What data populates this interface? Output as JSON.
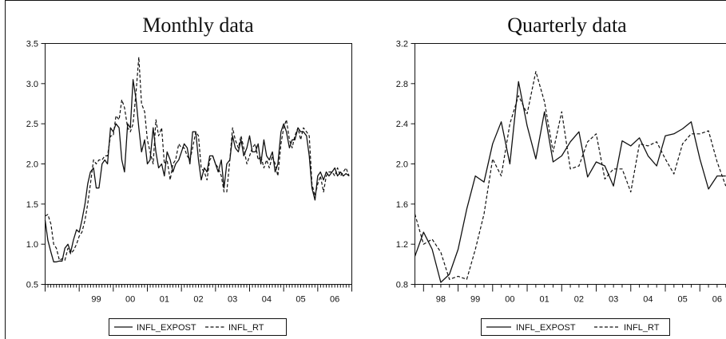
{
  "chart_data": [
    {
      "type": "line",
      "title": "Monthly data",
      "xlabel": "",
      "ylabel": "",
      "ylim": [
        0.5,
        3.5
      ],
      "yticks": [
        "0.5",
        "1.0",
        "1.5",
        "2.0",
        "2.5",
        "3.0",
        "3.5"
      ],
      "xlim": [
        1998.0,
        2007.0
      ],
      "xticks": [
        "99",
        "00",
        "01",
        "02",
        "03",
        "04",
        "05",
        "06"
      ],
      "legend": [
        "INFL_EXPOST",
        "INFL_RT"
      ],
      "legend_position": "bottom",
      "grid": false,
      "series": [
        {
          "name": "INFL_EXPOST",
          "style": "solid",
          "x": [
            1998.0,
            1998.08,
            1998.17,
            1998.25,
            1998.33,
            1998.42,
            1998.5,
            1998.58,
            1998.67,
            1998.75,
            1998.83,
            1998.92,
            1999.0,
            1999.08,
            1999.17,
            1999.25,
            1999.33,
            1999.42,
            1999.5,
            1999.58,
            1999.67,
            1999.75,
            1999.83,
            1999.92,
            2000.0,
            2000.08,
            2000.17,
            2000.25,
            2000.33,
            2000.42,
            2000.5,
            2000.58,
            2000.67,
            2000.75,
            2000.83,
            2000.92,
            2001.0,
            2001.08,
            2001.17,
            2001.25,
            2001.33,
            2001.42,
            2001.5,
            2001.58,
            2001.67,
            2001.75,
            2001.83,
            2001.92,
            2002.0,
            2002.08,
            2002.17,
            2002.25,
            2002.33,
            2002.42,
            2002.5,
            2002.58,
            2002.67,
            2002.75,
            2002.83,
            2002.92,
            2003.0,
            2003.08,
            2003.17,
            2003.25,
            2003.33,
            2003.42,
            2003.5,
            2003.58,
            2003.67,
            2003.75,
            2003.83,
            2003.92,
            2004.0,
            2004.08,
            2004.17,
            2004.25,
            2004.33,
            2004.42,
            2004.5,
            2004.58,
            2004.67,
            2004.75,
            2004.83,
            2004.92,
            2005.0,
            2005.08,
            2005.17,
            2005.25,
            2005.33,
            2005.42,
            2005.5,
            2005.58,
            2005.67,
            2005.75,
            2005.83,
            2005.92,
            2006.0,
            2006.08,
            2006.17,
            2006.25,
            2006.33,
            2006.42,
            2006.5,
            2006.58,
            2006.67,
            2006.75,
            2006.83,
            2006.92
          ],
          "y": [
            1.3,
            1.05,
            0.9,
            0.78,
            0.78,
            0.79,
            0.79,
            0.95,
            1.0,
            0.9,
            1.05,
            1.18,
            1.15,
            1.3,
            1.5,
            1.75,
            1.9,
            1.95,
            1.7,
            1.7,
            2.0,
            2.05,
            2.0,
            2.45,
            2.4,
            2.5,
            2.45,
            2.05,
            1.9,
            2.5,
            2.45,
            3.05,
            2.8,
            2.45,
            2.15,
            2.3,
            2.0,
            2.05,
            2.45,
            2.15,
            1.95,
            2.0,
            1.85,
            2.15,
            2.05,
            1.9,
            2.0,
            2.05,
            2.15,
            2.25,
            2.2,
            2.0,
            2.4,
            2.4,
            2.05,
            1.8,
            1.95,
            1.9,
            2.1,
            2.1,
            2.0,
            1.9,
            2.05,
            1.7,
            2.0,
            2.05,
            2.35,
            2.2,
            2.15,
            2.3,
            2.1,
            2.2,
            2.35,
            2.15,
            2.15,
            2.25,
            2.0,
            2.3,
            2.1,
            2.05,
            2.15,
            1.9,
            2.0,
            2.4,
            2.5,
            2.4,
            2.2,
            2.3,
            2.3,
            2.45,
            2.4,
            2.4,
            2.35,
            2.1,
            1.7,
            1.55,
            1.85,
            1.9,
            1.8,
            1.9,
            1.85,
            1.9,
            1.95,
            1.85,
            1.9,
            1.85,
            1.88,
            1.85
          ]
        },
        {
          "name": "INFL_RT",
          "style": "dashed",
          "x": [
            1998.0,
            1998.08,
            1998.17,
            1998.25,
            1998.33,
            1998.42,
            1998.5,
            1998.58,
            1998.67,
            1998.75,
            1998.83,
            1998.92,
            1999.0,
            1999.08,
            1999.17,
            1999.25,
            1999.33,
            1999.42,
            1999.5,
            1999.58,
            1999.67,
            1999.75,
            1999.83,
            1999.92,
            2000.0,
            2000.08,
            2000.17,
            2000.25,
            2000.33,
            2000.42,
            2000.5,
            2000.58,
            2000.67,
            2000.75,
            2000.83,
            2000.92,
            2001.0,
            2001.08,
            2001.17,
            2001.25,
            2001.33,
            2001.42,
            2001.5,
            2001.58,
            2001.67,
            2001.75,
            2001.83,
            2001.92,
            2002.0,
            2002.08,
            2002.17,
            2002.25,
            2002.33,
            2002.42,
            2002.5,
            2002.58,
            2002.67,
            2002.75,
            2002.83,
            2002.92,
            2003.0,
            2003.08,
            2003.17,
            2003.25,
            2003.33,
            2003.42,
            2003.5,
            2003.58,
            2003.67,
            2003.75,
            2003.83,
            2003.92,
            2004.0,
            2004.08,
            2004.17,
            2004.25,
            2004.33,
            2004.42,
            2004.5,
            2004.58,
            2004.67,
            2004.75,
            2004.83,
            2004.92,
            2005.0,
            2005.08,
            2005.17,
            2005.25,
            2005.33,
            2005.42,
            2005.5,
            2005.58,
            2005.67,
            2005.75,
            2005.83,
            2005.92,
            2006.0,
            2006.08,
            2006.17,
            2006.25,
            2006.33,
            2006.42,
            2006.5,
            2006.58,
            2006.67,
            2006.75,
            2006.83,
            2006.92
          ],
          "y": [
            1.35,
            1.37,
            1.25,
            1.0,
            0.95,
            0.8,
            0.82,
            0.8,
            0.95,
            0.88,
            0.92,
            1.0,
            1.1,
            1.15,
            1.3,
            1.5,
            1.75,
            2.05,
            2.0,
            2.05,
            2.05,
            2.1,
            2.1,
            2.35,
            2.35,
            2.6,
            2.55,
            2.8,
            2.7,
            2.45,
            2.4,
            2.5,
            2.9,
            3.33,
            2.75,
            2.65,
            2.3,
            2.15,
            2.0,
            2.55,
            2.35,
            2.45,
            2.0,
            2.05,
            1.8,
            2.0,
            2.05,
            2.25,
            2.2,
            2.2,
            2.1,
            2.05,
            2.2,
            2.4,
            2.35,
            1.95,
            1.9,
            1.8,
            2.05,
            2.1,
            2.0,
            1.95,
            1.85,
            1.65,
            1.65,
            2.05,
            2.45,
            2.3,
            2.2,
            2.35,
            2.2,
            2.0,
            2.1,
            2.2,
            2.25,
            2.05,
            2.1,
            1.95,
            2.05,
            1.95,
            2.1,
            2.0,
            1.85,
            2.25,
            2.45,
            2.55,
            2.3,
            2.2,
            2.35,
            2.45,
            2.3,
            2.45,
            2.4,
            2.35,
            1.75,
            1.6,
            1.75,
            1.85,
            1.65,
            1.85,
            1.9,
            1.9,
            1.85,
            1.95,
            1.85,
            1.9,
            1.95,
            1.85
          ]
        }
      ]
    },
    {
      "type": "line",
      "title": "Quarterly data",
      "xlabel": "",
      "ylabel": "",
      "ylim": [
        0.8,
        3.2
      ],
      "yticks": [
        "0.8",
        "1.2",
        "1.6",
        "2.0",
        "2.4",
        "2.8",
        "3.2"
      ],
      "xlim": [
        1997.75,
        2007.0
      ],
      "xticks": [
        "98",
        "99",
        "00",
        "01",
        "02",
        "03",
        "04",
        "05",
        "06"
      ],
      "legend": [
        "INFL_EXPOST",
        "INFL_RT"
      ],
      "legend_position": "bottom",
      "grid": false,
      "series": [
        {
          "name": "INFL_EXPOST",
          "style": "solid",
          "x": [
            1997.75,
            1998.0,
            1998.25,
            1998.5,
            1998.75,
            1999.0,
            1999.25,
            1999.5,
            1999.75,
            2000.0,
            2000.25,
            2000.5,
            2000.75,
            2001.0,
            2001.25,
            2001.5,
            2001.75,
            2002.0,
            2002.25,
            2002.5,
            2002.75,
            2003.0,
            2003.25,
            2003.5,
            2003.75,
            2004.0,
            2004.25,
            2004.5,
            2004.75,
            2005.0,
            2005.25,
            2005.5,
            2005.75,
            2006.0,
            2006.25,
            2006.5,
            2006.75
          ],
          "y": [
            1.08,
            1.32,
            1.15,
            0.82,
            0.9,
            1.15,
            1.55,
            1.88,
            1.82,
            2.2,
            2.42,
            2.0,
            2.82,
            2.38,
            2.05,
            2.52,
            2.02,
            2.08,
            2.22,
            2.32,
            1.87,
            2.02,
            1.98,
            1.78,
            2.23,
            2.18,
            2.26,
            2.08,
            1.98,
            2.28,
            2.3,
            2.35,
            2.42,
            2.05,
            1.75,
            1.88,
            1.88
          ]
        },
        {
          "name": "INFL_RT",
          "style": "dashed",
          "x": [
            1997.75,
            1998.0,
            1998.25,
            1998.5,
            1998.75,
            1999.0,
            1999.25,
            1999.5,
            1999.75,
            2000.0,
            2000.25,
            2000.5,
            2000.75,
            2001.0,
            2001.25,
            2001.5,
            2001.75,
            2002.0,
            2002.25,
            2002.5,
            2002.75,
            2003.0,
            2003.25,
            2003.5,
            2003.75,
            2004.0,
            2004.25,
            2004.5,
            2004.75,
            2005.0,
            2005.25,
            2005.5,
            2005.75,
            2006.0,
            2006.25,
            2006.5,
            2006.75
          ],
          "y": [
            1.5,
            1.2,
            1.25,
            1.12,
            0.85,
            0.88,
            0.85,
            1.15,
            1.5,
            2.05,
            1.88,
            2.4,
            2.68,
            2.5,
            2.92,
            2.62,
            2.12,
            2.52,
            1.95,
            1.98,
            2.22,
            2.3,
            1.85,
            1.95,
            1.95,
            1.72,
            2.2,
            2.18,
            2.22,
            2.05,
            1.9,
            2.2,
            2.3,
            2.3,
            2.33,
            2.02,
            1.78
          ]
        }
      ]
    }
  ]
}
